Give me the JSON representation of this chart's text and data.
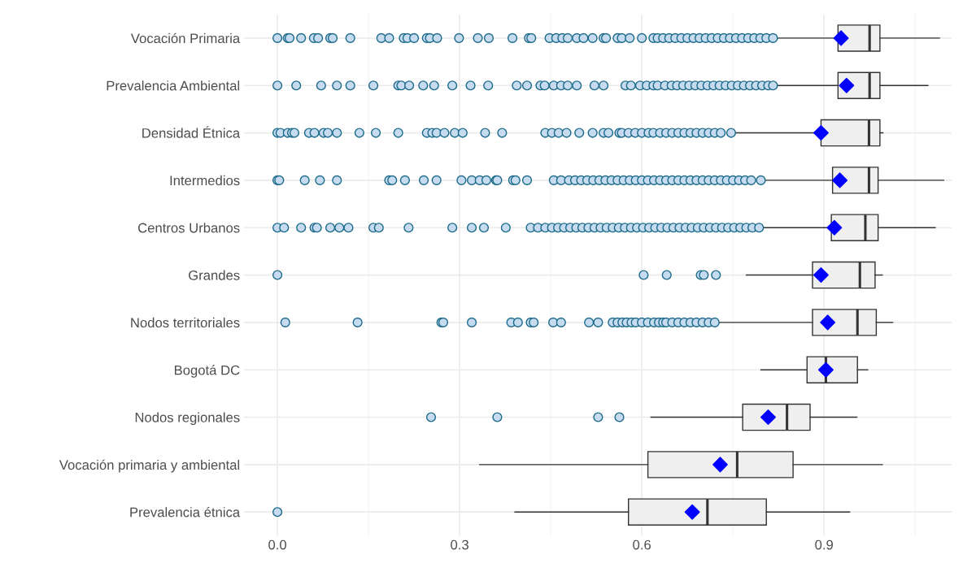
{
  "chart_data": {
    "type": "box",
    "orientation": "horizontal",
    "color": "#efefef",
    "grid": true,
    "marker": "circle",
    "categories": [
      "Vocación Primaria",
      "Prevalencia Ambiental",
      "Densidad Étnica",
      "Intermedios",
      "Centros Urbanos",
      "Grandes",
      "Nodos territoriales",
      "Bogotá DC",
      "Nodos regionales",
      "Vocación primaria y ambiental",
      "Prevalencia étnica"
    ],
    "xlim": [
      -0.055,
      1.11
    ],
    "xticks": [
      {
        "value": 0,
        "label": "0.0"
      },
      0.3,
      0.6,
      0.9
    ],
    "boxes": [
      {
        "low": 0.82,
        "q1": 0.923,
        "median": 0.975,
        "q3": 0.992,
        "high": 1.09,
        "mean": 0.928,
        "outliers": [
          0.0,
          0.017,
          0.02,
          0.039,
          0.06,
          0.067,
          0.087,
          0.091,
          0.12,
          0.171,
          0.184,
          0.208,
          0.214,
          0.225,
          0.246,
          0.251,
          0.263,
          0.299,
          0.33,
          0.348,
          0.387,
          0.414,
          0.418,
          0.448,
          0.459,
          0.469,
          0.478,
          0.493,
          0.504,
          0.519,
          0.537,
          0.541,
          0.56,
          0.567,
          0.58,
          0.6,
          0.619,
          0.626,
          0.635,
          0.645,
          0.655,
          0.665,
          0.675,
          0.685,
          0.695,
          0.705,
          0.715,
          0.725,
          0.735,
          0.745,
          0.755,
          0.765,
          0.775,
          0.785,
          0.795,
          0.805,
          0.816
        ]
      },
      {
        "low": 0.82,
        "q1": 0.923,
        "median": 0.975,
        "q3": 0.992,
        "high": 1.071,
        "mean": 0.937,
        "outliers": [
          0.0,
          0.031,
          0.072,
          0.098,
          0.12,
          0.158,
          0.199,
          0.204,
          0.217,
          0.24,
          0.258,
          0.288,
          0.318,
          0.347,
          0.394,
          0.411,
          0.433,
          0.44,
          0.455,
          0.467,
          0.478,
          0.493,
          0.522,
          0.537,
          0.573,
          0.582,
          0.597,
          0.608,
          0.619,
          0.626,
          0.638,
          0.649,
          0.658,
          0.668,
          0.678,
          0.688,
          0.698,
          0.708,
          0.718,
          0.728,
          0.738,
          0.748,
          0.758,
          0.768,
          0.778,
          0.788,
          0.798,
          0.808,
          0.816
        ]
      },
      {
        "low": 0.75,
        "q1": 0.895,
        "median": 0.974,
        "q3": 0.992,
        "high": 0.997,
        "mean": 0.895,
        "outliers": [
          0.0,
          0.005,
          0.017,
          0.024,
          0.028,
          0.052,
          0.061,
          0.076,
          0.083,
          0.098,
          0.135,
          0.162,
          0.199,
          0.246,
          0.255,
          0.262,
          0.275,
          0.292,
          0.305,
          0.342,
          0.37,
          0.441,
          0.452,
          0.463,
          0.476,
          0.497,
          0.519,
          0.537,
          0.545,
          0.563,
          0.567,
          0.578,
          0.589,
          0.6,
          0.611,
          0.619,
          0.63,
          0.64,
          0.65,
          0.66,
          0.67,
          0.68,
          0.69,
          0.7,
          0.71,
          0.72,
          0.73,
          0.747
        ]
      },
      {
        "low": 0.8,
        "q1": 0.914,
        "median": 0.974,
        "q3": 0.989,
        "high": 1.097,
        "mean": 0.926,
        "outliers": [
          0.0,
          0.003,
          0.045,
          0.07,
          0.098,
          0.184,
          0.189,
          0.21,
          0.241,
          0.262,
          0.303,
          0.32,
          0.333,
          0.344,
          0.36,
          0.362,
          0.388,
          0.392,
          0.411,
          0.455,
          0.467,
          0.48,
          0.49,
          0.5,
          0.51,
          0.52,
          0.53,
          0.54,
          0.55,
          0.56,
          0.57,
          0.58,
          0.59,
          0.6,
          0.61,
          0.62,
          0.63,
          0.64,
          0.65,
          0.66,
          0.67,
          0.68,
          0.69,
          0.7,
          0.71,
          0.72,
          0.73,
          0.74,
          0.75,
          0.76,
          0.77,
          0.78,
          0.796
        ]
      },
      {
        "low": 0.797,
        "q1": 0.912,
        "median": 0.968,
        "q3": 0.989,
        "high": 1.083,
        "mean": 0.917,
        "outliers": [
          0.0,
          0.011,
          0.039,
          0.061,
          0.065,
          0.087,
          0.102,
          0.117,
          0.158,
          0.167,
          0.216,
          0.288,
          0.32,
          0.34,
          0.376,
          0.417,
          0.429,
          0.441,
          0.452,
          0.462,
          0.472,
          0.482,
          0.492,
          0.502,
          0.512,
          0.522,
          0.532,
          0.542,
          0.552,
          0.562,
          0.572,
          0.582,
          0.592,
          0.602,
          0.612,
          0.622,
          0.632,
          0.642,
          0.652,
          0.662,
          0.672,
          0.682,
          0.692,
          0.702,
          0.712,
          0.722,
          0.732,
          0.742,
          0.752,
          0.762,
          0.772,
          0.782,
          0.793
        ]
      },
      {
        "low": 0.772,
        "q1": 0.881,
        "median": 0.959,
        "q3": 0.984,
        "high": 0.996,
        "mean": 0.895,
        "outliers": [
          0.0,
          0.603,
          0.641,
          0.697,
          0.702,
          0.722
        ]
      },
      {
        "low": 0.725,
        "q1": 0.881,
        "median": 0.955,
        "q3": 0.986,
        "high": 1.013,
        "mean": 0.906,
        "outliers": [
          0.013,
          0.132,
          0.27,
          0.273,
          0.32,
          0.385,
          0.396,
          0.417,
          0.422,
          0.454,
          0.467,
          0.513,
          0.528,
          0.552,
          0.56,
          0.568,
          0.575,
          0.583,
          0.59,
          0.6,
          0.61,
          0.62,
          0.628,
          0.635,
          0.64,
          0.65,
          0.66,
          0.67,
          0.68,
          0.69,
          0.7,
          0.71,
          0.72
        ]
      },
      {
        "low": 0.796,
        "q1": 0.872,
        "median": 0.903,
        "q3": 0.955,
        "high": 0.972,
        "mean": 0.903
      },
      {
        "low": 0.615,
        "q1": 0.766,
        "median": 0.839,
        "q3": 0.877,
        "high": 0.954,
        "mean": 0.808,
        "outliers": [
          0.253,
          0.362,
          0.528,
          0.563
        ]
      },
      {
        "low": 0.333,
        "q1": 0.61,
        "median": 0.757,
        "q3": 0.849,
        "high": 0.996,
        "mean": 0.729
      },
      {
        "low": 0.391,
        "q1": 0.578,
        "median": 0.708,
        "q3": 0.805,
        "high": 0.942,
        "mean": 0.683,
        "outliers": [
          0.0
        ]
      }
    ]
  }
}
